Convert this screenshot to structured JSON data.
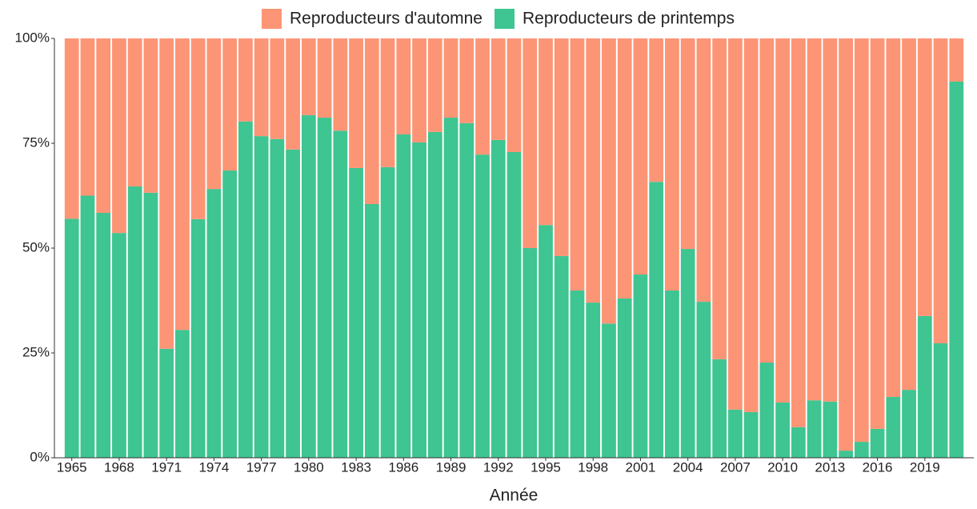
{
  "chart_data": {
    "type": "stacked-bar",
    "x_label": "Année",
    "categories": [
      "1965",
      null,
      null,
      "1968",
      null,
      null,
      "1971",
      null,
      null,
      "1974",
      null,
      null,
      "1977",
      null,
      null,
      "1980",
      null,
      null,
      "1983",
      null,
      null,
      "1986",
      null,
      null,
      "1989",
      null,
      null,
      "1992",
      null,
      null,
      "1995",
      null,
      null,
      "1998",
      null,
      null,
      "2001",
      null,
      null,
      "2004",
      null,
      null,
      "2007",
      null,
      null,
      "2010",
      null,
      null,
      "2013",
      null,
      null,
      "2016",
      null,
      null,
      "2019",
      null,
      null
    ],
    "series": [
      {
        "name": "Reproducteurs d'automne",
        "color": "#fc9575",
        "values": [
          43,
          37.5,
          41.6,
          46.4,
          35.3,
          36.8,
          74,
          69.5,
          43.1,
          35.9,
          31.5,
          19.8,
          23.3,
          24,
          26.5,
          18.3,
          18.9,
          22,
          30.9,
          39.5,
          30.7,
          22.9,
          24.8,
          22.3,
          18.9,
          20.2,
          27.7,
          24.2,
          27.1,
          50,
          44.5,
          51.9,
          60.1,
          63,
          68,
          62,
          56.3,
          34.2,
          60.1,
          50.2,
          62.8,
          76.5,
          88.5,
          89.1,
          77.3,
          86.8,
          92.7,
          86.3,
          86.6,
          98.3,
          96.2,
          93.1,
          85.5,
          83.8,
          66.2,
          72.7,
          10.3
        ]
      },
      {
        "name": "Reproducteurs de printemps",
        "color": "#3ec591",
        "values": [
          57,
          62.5,
          58.4,
          53.6,
          64.7,
          63.2,
          26,
          30.5,
          56.9,
          64.1,
          68.5,
          80.2,
          76.7,
          76,
          73.5,
          81.7,
          81.1,
          78,
          69.1,
          60.5,
          69.3,
          77.1,
          75.2,
          77.7,
          81.1,
          79.8,
          72.3,
          75.8,
          72.9,
          50,
          55.5,
          48.1,
          39.9,
          37,
          32,
          38,
          43.7,
          65.8,
          39.9,
          49.8,
          37.2,
          23.5,
          11.5,
          10.9,
          22.7,
          13.2,
          7.3,
          13.7,
          13.4,
          1.7,
          3.8,
          6.9,
          14.5,
          16.2,
          33.8,
          27.3,
          89.7
        ]
      }
    ],
    "ylim": [
      0,
      100
    ],
    "yticks": [
      {
        "value": 0,
        "label": "0%"
      },
      {
        "value": 25,
        "label": "25%"
      },
      {
        "value": 50,
        "label": "50%"
      },
      {
        "value": 75,
        "label": "75%"
      },
      {
        "value": 100,
        "label": "100%"
      }
    ],
    "legend": "top"
  }
}
